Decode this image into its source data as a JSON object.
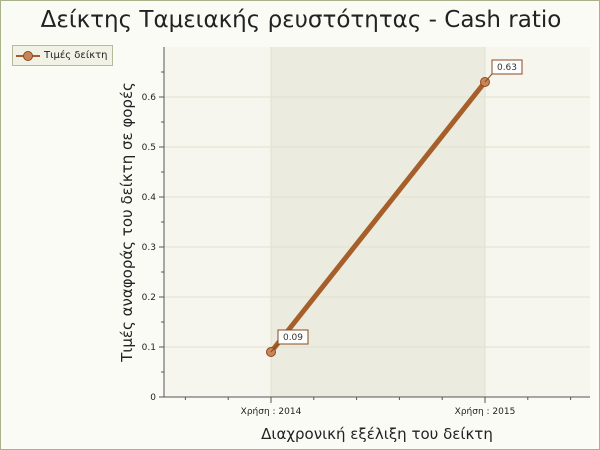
{
  "chart_data": {
    "type": "line",
    "title": "Δείκτης Ταμειακής ρευστότητας - Cash ratio",
    "xlabel": "Διαχρονική εξέλιξη του δείκτη",
    "ylabel": "Τιμές αναφοράς του δείκτη σε φορές",
    "categories": [
      "Χρήση : 2014",
      "Χρήση : 2015"
    ],
    "series": [
      {
        "name": "Τιμές δείκτη",
        "values": [
          0.09,
          0.63
        ],
        "labels": [
          "0.09",
          "0.63"
        ]
      }
    ],
    "ylim": [
      0,
      0.7
    ],
    "yticks": [
      0,
      0.1,
      0.2,
      0.3,
      0.4,
      0.5,
      0.6
    ],
    "ytick_labels": [
      "0",
      "0.1",
      "0.2",
      "0.3",
      "0.4",
      "0.5",
      "0.6"
    ],
    "grid": true,
    "legend_position": "top-left",
    "colors": {
      "series_line": "#a65f2a",
      "marker_fill": "#c9855a",
      "marker_stroke": "#8a4a1e",
      "plot_bg": "#f6f6ee",
      "band": "#ebebdf",
      "grid": "#e1e1cf",
      "axis": "#555555",
      "border": "#a8b488"
    }
  }
}
